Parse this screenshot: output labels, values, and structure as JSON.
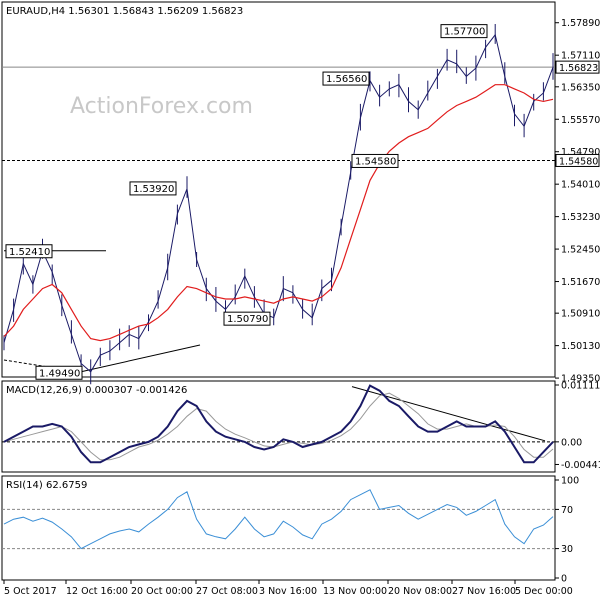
{
  "watermark": "ActionForex.com",
  "chart_data": {
    "type": "line",
    "price_panel": {
      "header": "EURAUD,H4  1.56301 1.56843 1.56209 1.56823",
      "ylim": [
        1.494,
        1.5834
      ],
      "y_ticks": [
        "1.57890",
        "1.57110",
        "1.56350",
        "1.55570",
        "1.54790",
        "1.54010",
        "1.53230",
        "1.52450",
        "1.51670",
        "1.50910",
        "1.50130",
        "1.49350"
      ],
      "current_price": "1.56823",
      "reference_level": "1.54580",
      "annotations": [
        "1.52410",
        "1.49490",
        "1.53920",
        "1.50790",
        "1.56560",
        "1.54580",
        "1.57700"
      ],
      "series": [
        {
          "values": [
            1.502,
            1.51,
            1.521,
            1.516,
            1.524,
            1.519,
            1.511,
            1.504,
            1.497,
            1.495,
            1.499,
            1.5,
            1.502,
            1.504,
            1.503,
            1.507,
            1.512,
            1.52,
            1.533,
            1.539,
            1.522,
            1.515,
            1.512,
            1.51,
            1.513,
            1.518,
            1.513,
            1.509,
            1.508,
            1.515,
            1.514,
            1.51,
            1.508,
            1.515,
            1.517,
            1.53,
            1.543,
            1.556,
            1.565,
            1.561,
            1.563,
            1.564,
            1.56,
            1.558,
            1.562,
            1.566,
            1.57,
            1.569,
            1.566,
            1.568,
            1.573,
            1.576,
            1.566,
            1.557,
            1.554,
            1.56,
            1.562,
            1.5682
          ]
        },
        {
          "values": [
            1.5035,
            1.506,
            1.51,
            1.5125,
            1.515,
            1.516,
            1.514,
            1.51,
            1.506,
            1.503,
            1.5025,
            1.503,
            1.504,
            1.505,
            1.506,
            1.5065,
            1.508,
            1.51,
            1.513,
            1.5155,
            1.515,
            1.514,
            1.513,
            1.5125,
            1.5125,
            1.513,
            1.5125,
            1.512,
            1.5115,
            1.5125,
            1.513,
            1.5125,
            1.512,
            1.513,
            1.515,
            1.52,
            1.527,
            1.534,
            1.541,
            1.545,
            1.548,
            1.55,
            1.5515,
            1.5525,
            1.5535,
            1.5555,
            1.5575,
            1.559,
            1.56,
            1.561,
            1.5625,
            1.564,
            1.564,
            1.563,
            1.562,
            1.5605,
            1.56,
            1.5605
          ]
        }
      ]
    },
    "macd_panel": {
      "header": "MACD(12,26,9) 0.000307 -0.001426",
      "ylim": [
        -0.0055,
        0.0115
      ],
      "y_ticks": [
        "0.011111",
        "0.00",
        "-0.004419"
      ],
      "series": [
        {
          "values": [
            0.0,
            0.001,
            0.002,
            0.003,
            0.003,
            0.0035,
            0.003,
            0.001,
            -0.002,
            -0.004,
            -0.004,
            -0.003,
            -0.002,
            -0.001,
            -0.0005,
            0.0,
            0.001,
            0.003,
            0.006,
            0.008,
            0.007,
            0.004,
            0.002,
            0.001,
            0.0005,
            0.0,
            -0.001,
            -0.0015,
            -0.001,
            0.0005,
            0.0,
            -0.001,
            -0.0005,
            0.0,
            0.001,
            0.002,
            0.004,
            0.007,
            0.011,
            0.01,
            0.008,
            0.007,
            0.005,
            0.003,
            0.002,
            0.002,
            0.003,
            0.004,
            0.003,
            0.003,
            0.003,
            0.004,
            0.002,
            -0.001,
            -0.004,
            -0.004,
            -0.002,
            0.0
          ]
        },
        {
          "values": [
            0.0,
            0.0005,
            0.001,
            0.0015,
            0.002,
            0.0025,
            0.003,
            0.002,
            0.0,
            -0.002,
            -0.0035,
            -0.0035,
            -0.003,
            -0.002,
            -0.001,
            -0.0005,
            0.0003,
            0.0015,
            0.003,
            0.005,
            0.0065,
            0.006,
            0.004,
            0.0025,
            0.0015,
            0.0008,
            0.0,
            -0.0008,
            -0.001,
            -0.0005,
            0.0,
            -0.0003,
            -0.0006,
            -0.0003,
            0.0003,
            0.0012,
            0.0025,
            0.0045,
            0.007,
            0.009,
            0.0095,
            0.0085,
            0.007,
            0.0055,
            0.0035,
            0.0025,
            0.0025,
            0.003,
            0.0035,
            0.003,
            0.003,
            0.0033,
            0.003,
            0.001,
            -0.0015,
            -0.003,
            -0.003,
            -0.0014
          ]
        }
      ]
    },
    "rsi_panel": {
      "header": "RSI(14) 62.6759",
      "ylim": [
        0,
        100
      ],
      "y_ticks": [
        "100",
        "70",
        "30",
        "0"
      ],
      "series": [
        {
          "values": [
            55,
            60,
            62,
            58,
            61,
            57,
            50,
            42,
            30,
            35,
            40,
            45,
            48,
            50,
            47,
            55,
            62,
            70,
            82,
            88,
            60,
            45,
            42,
            40,
            50,
            62,
            50,
            42,
            45,
            58,
            52,
            44,
            40,
            55,
            60,
            68,
            80,
            85,
            90,
            70,
            72,
            74,
            66,
            60,
            65,
            70,
            75,
            72,
            64,
            68,
            74,
            80,
            55,
            42,
            35,
            50,
            54,
            62.68
          ]
        }
      ]
    },
    "x_tick_labels": [
      "5 Oct 2017",
      "12 Oct 16:00",
      "20 Oct 00:00",
      "27 Oct 08:00",
      "3 Nov 16:00",
      "13 Nov 00:00",
      "20 Nov 08:00",
      "27 Nov 16:00",
      "5 Dec 00:00"
    ],
    "colors": {
      "price_line": "#1a1a66",
      "ema": "#e11d1d",
      "macd": "#1a1a66",
      "signal": "#999999",
      "rsi": "#3b8fd6",
      "trendline": "#000000"
    }
  }
}
